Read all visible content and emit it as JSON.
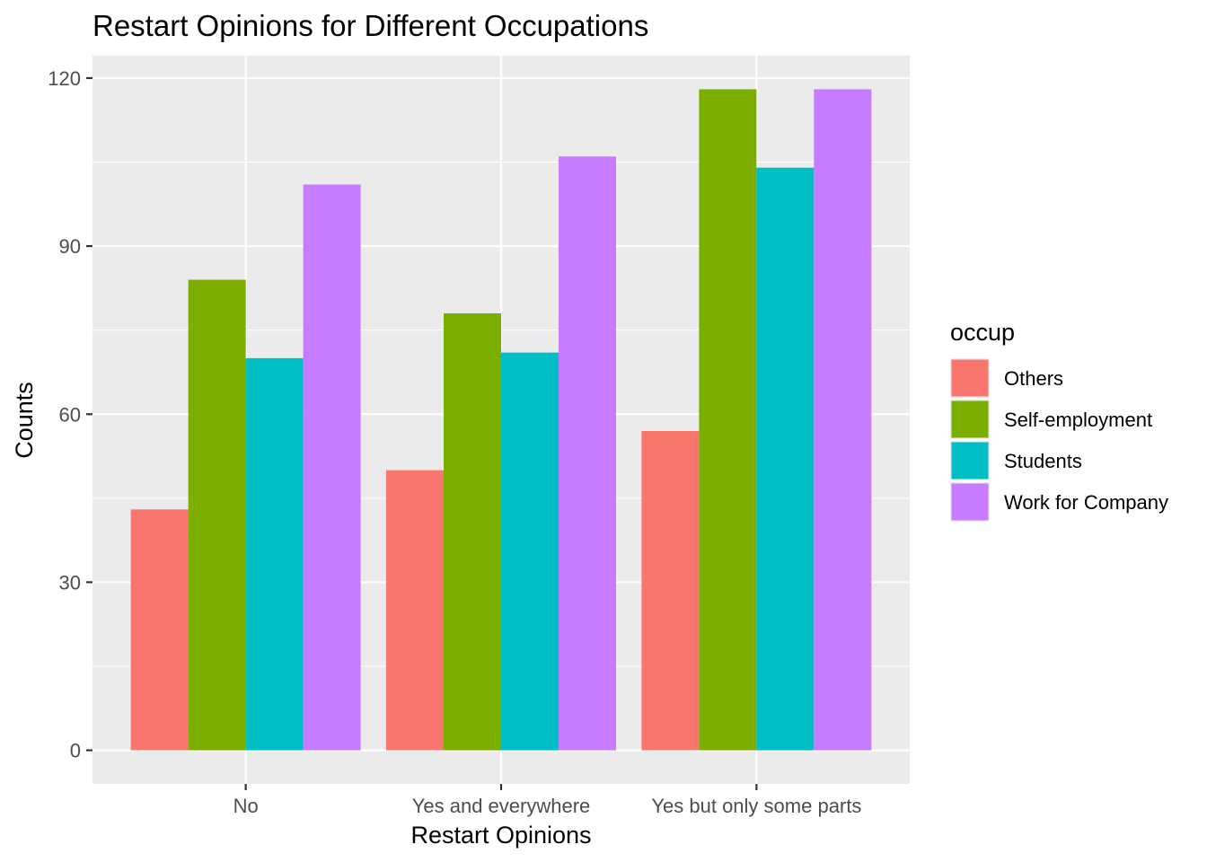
{
  "chart_data": {
    "type": "bar",
    "title": "Restart Opinions for Different Occupations",
    "xlabel": "Restart Opinions",
    "ylabel": "Counts",
    "ylim": [
      -6,
      124
    ],
    "yticks": [
      0,
      30,
      60,
      90,
      120
    ],
    "grid": true,
    "categories": [
      "No",
      "Yes and everywhere",
      "Yes but only some parts"
    ],
    "legend": {
      "title": "occup",
      "position": "right"
    },
    "series": [
      {
        "name": "Others",
        "color": "#F8766D",
        "values": [
          43,
          50,
          57
        ]
      },
      {
        "name": "Self-employment",
        "color": "#7CAE00",
        "values": [
          84,
          78,
          118
        ]
      },
      {
        "name": "Students",
        "color": "#00BFC4",
        "values": [
          70,
          71,
          104
        ]
      },
      {
        "name": "Work for Company",
        "color": "#C77CFF",
        "values": [
          101,
          106,
          118
        ]
      }
    ],
    "colors": {
      "panel": "#EBEBEB",
      "grid": "#FFFFFF",
      "tick_text": "#4D4D4D"
    }
  }
}
